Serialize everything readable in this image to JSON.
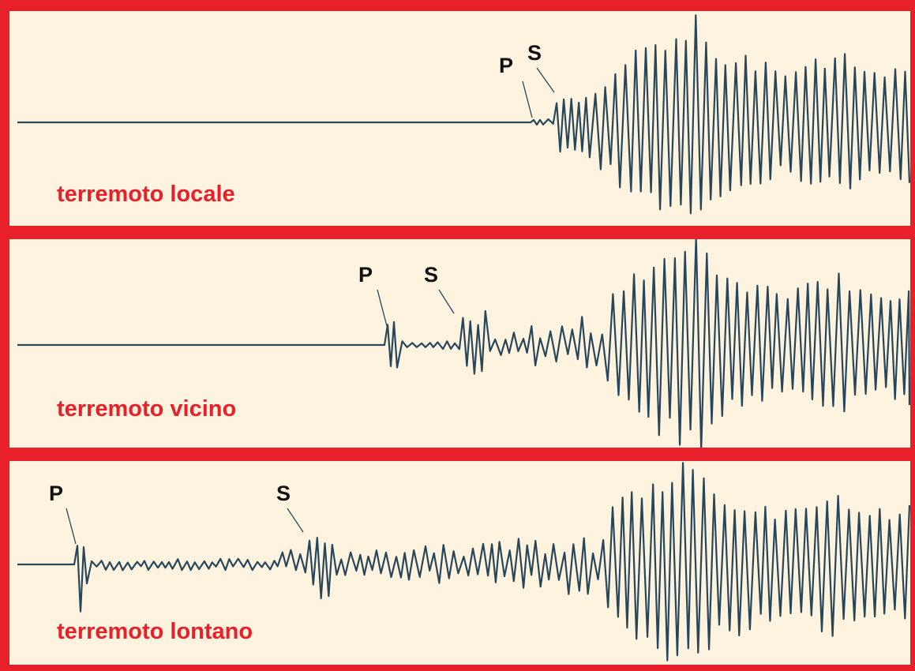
{
  "colors": {
    "frame": "#e8202a",
    "panel": "#fdf3df",
    "trace": "#27465a",
    "caption": "#e8202a",
    "marker": "#111111"
  },
  "panels": [
    {
      "caption": "terremoto locale",
      "p_label": "P",
      "s_label": "S"
    },
    {
      "caption": "terremoto vicino",
      "p_label": "P",
      "s_label": "S"
    },
    {
      "caption": "terremoto lontano",
      "p_label": "P",
      "s_label": "S"
    }
  ]
}
